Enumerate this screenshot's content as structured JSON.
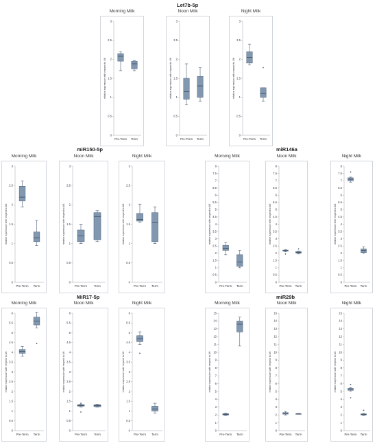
{
  "chart_data": [
    {
      "type": "box",
      "group": "Let7b-5p",
      "title": "Morning Milk",
      "ylabel": "relative expression with respect to U6",
      "categories": [
        "Pre-Term",
        "Term"
      ],
      "ylim": [
        0,
        3
      ],
      "yticks": [
        0,
        0.5,
        1,
        1.5,
        2,
        2.5,
        3
      ],
      "boxes": [
        {
          "min": 1.7,
          "q1": 1.95,
          "median": 2.08,
          "q3": 2.15,
          "max": 2.2,
          "outliers": []
        },
        {
          "min": 1.7,
          "q1": 1.75,
          "median": 1.88,
          "q3": 1.95,
          "max": 1.97,
          "outliers": []
        }
      ]
    },
    {
      "type": "box",
      "group": "Let7b-5p",
      "title": "Noon Milk",
      "ylabel": "relative expression with respect to U6",
      "categories": [
        "Pre-Term",
        "Term"
      ],
      "ylim": [
        0,
        3
      ],
      "yticks": [
        0,
        0.5,
        1,
        1.5,
        2,
        2.5,
        3
      ],
      "boxes": [
        {
          "min": 0.8,
          "q1": 0.95,
          "median": 1.15,
          "q3": 1.5,
          "max": 1.88,
          "outliers": []
        },
        {
          "min": 0.9,
          "q1": 1.0,
          "median": 1.3,
          "q3": 1.55,
          "max": 1.78,
          "outliers": []
        }
      ]
    },
    {
      "type": "box",
      "group": "Let7b-5p",
      "title": "Night Milk",
      "ylabel": "relative expression with respect to U6",
      "categories": [
        "Pre-Term",
        "Term"
      ],
      "ylim": [
        0,
        3
      ],
      "yticks": [
        0,
        0.5,
        1,
        1.5,
        2,
        2.5,
        3
      ],
      "boxes": [
        {
          "min": 1.85,
          "q1": 1.9,
          "median": 2.05,
          "q3": 2.2,
          "max": 2.4,
          "outliers": []
        },
        {
          "min": 0.9,
          "q1": 1.0,
          "median": 1.1,
          "q3": 1.25,
          "max": 1.25,
          "outliers": [
            1.78
          ]
        }
      ]
    },
    {
      "type": "box",
      "group": "miR150-5p",
      "title": "Morning Milk",
      "ylabel": "relative expression with respect to U6",
      "categories": [
        "Pre-Term",
        "Term"
      ],
      "ylim": [
        0,
        3
      ],
      "yticks": [
        0,
        0.5,
        1,
        1.5,
        2,
        2.5,
        3
      ],
      "boxes": [
        {
          "min": 1.95,
          "q1": 2.1,
          "median": 2.2,
          "q3": 2.48,
          "max": 2.62,
          "outliers": []
        },
        {
          "min": 0.95,
          "q1": 1.05,
          "median": 1.15,
          "q3": 1.3,
          "max": 1.6,
          "outliers": []
        }
      ]
    },
    {
      "type": "box",
      "group": "miR150-5p",
      "title": "Noon Milk",
      "ylabel": "relative expression with respect to U6",
      "categories": [
        "Pre-Term",
        "Term"
      ],
      "ylim": [
        0,
        3
      ],
      "yticks": [
        0,
        0.5,
        1,
        1.5,
        2,
        2.5,
        3
      ],
      "boxes": [
        {
          "min": 1.0,
          "q1": 1.05,
          "median": 1.2,
          "q3": 1.35,
          "max": 1.5,
          "outliers": []
        },
        {
          "min": 1.05,
          "q1": 1.1,
          "median": 1.7,
          "q3": 1.8,
          "max": 1.85,
          "outliers": []
        }
      ]
    },
    {
      "type": "box",
      "group": "miR150-5p",
      "title": "Night Milk",
      "ylabel": "relative expression with respect to U6",
      "categories": [
        "Pre-Term",
        "Term"
      ],
      "ylim": [
        0,
        3
      ],
      "yticks": [
        0,
        0.5,
        1,
        1.5,
        2,
        2.5,
        3
      ],
      "boxes": [
        {
          "min": 1.55,
          "q1": 1.58,
          "median": 1.62,
          "q3": 1.78,
          "max": 2.02,
          "outliers": []
        },
        {
          "min": 1.0,
          "q1": 1.05,
          "median": 1.55,
          "q3": 1.8,
          "max": 1.95,
          "outliers": []
        }
      ]
    },
    {
      "type": "box",
      "group": "miR146a",
      "title": "Morning Milk",
      "ylabel": "relative expression with respect to U6",
      "categories": [
        "Pre-Term",
        "Term"
      ],
      "ylim": [
        0,
        8
      ],
      "yticks": [
        0,
        0.5,
        1,
        1.5,
        2,
        2.5,
        3,
        3.5,
        4,
        4.5,
        5,
        5.5,
        6,
        6.5,
        7,
        7.5,
        8
      ],
      "boxes": [
        {
          "min": 1.9,
          "q1": 2.2,
          "median": 2.35,
          "q3": 2.55,
          "max": 2.75,
          "outliers": []
        },
        {
          "min": 1.0,
          "q1": 1.1,
          "median": 1.4,
          "q3": 1.9,
          "max": 2.2,
          "outliers": []
        }
      ]
    },
    {
      "type": "box",
      "group": "miR146a",
      "title": "Noon Milk",
      "ylabel": "relative expression with respect to U6",
      "categories": [
        "Pre-Term",
        "Term"
      ],
      "ylim": [
        0,
        8
      ],
      "yticks": [
        0,
        0.5,
        1,
        1.5,
        2,
        2.5,
        3,
        3.5,
        4,
        4.5,
        5,
        5.5,
        6,
        6.5,
        7,
        7.5,
        8
      ],
      "boxes": [
        {
          "min": 2.1,
          "q1": 2.15,
          "median": 2.18,
          "q3": 2.22,
          "max": 2.25,
          "outliers": [
            1.95
          ]
        },
        {
          "min": 1.95,
          "q1": 2.0,
          "median": 2.05,
          "q3": 2.12,
          "max": 2.15,
          "outliers": [
            2.3
          ]
        }
      ]
    },
    {
      "type": "box",
      "group": "miR146a",
      "title": "Night Milk",
      "ylabel": "relative expression with respect to U6",
      "categories": [
        "Pre-Term",
        "Term"
      ],
      "ylim": [
        0,
        8
      ],
      "yticks": [
        0,
        0.5,
        1,
        1.5,
        2,
        2.5,
        3,
        3.5,
        4,
        4.5,
        5,
        5.5,
        6,
        6.5,
        7,
        7.5,
        8
      ],
      "boxes": [
        {
          "min": 6.9,
          "q1": 7.0,
          "median": 7.1,
          "q3": 7.2,
          "max": 7.25,
          "outliers": [
            7.6
          ]
        },
        {
          "min": 2.0,
          "q1": 2.05,
          "median": 2.2,
          "q3": 2.3,
          "max": 2.45,
          "outliers": []
        }
      ]
    },
    {
      "type": "box",
      "group": "MiR17-5p",
      "title": "Morning Milk",
      "ylabel": "relative expression with respect to U6",
      "categories": [
        "Pre-Term",
        "Term"
      ],
      "ylim": [
        0,
        6
      ],
      "yticks": [
        0,
        0.5,
        1,
        1.5,
        2,
        2.5,
        3,
        3.5,
        4,
        4.5,
        5,
        5.5,
        6
      ],
      "boxes": [
        {
          "min": 3.8,
          "q1": 3.95,
          "median": 4.05,
          "q3": 4.15,
          "max": 4.3,
          "outliers": []
        },
        {
          "min": 5.25,
          "q1": 5.4,
          "median": 5.6,
          "q3": 5.8,
          "max": 6.05,
          "outliers": [
            4.45
          ]
        }
      ]
    },
    {
      "type": "box",
      "group": "MiR17-5p",
      "title": "Noon Milk",
      "ylabel": "relative expression with respect to U6",
      "categories": [
        "Pre-Term",
        "Term"
      ],
      "ylim": [
        0,
        6
      ],
      "yticks": [
        0,
        0.5,
        1,
        1.5,
        2,
        2.5,
        3,
        3.5,
        4,
        4.5,
        5,
        5.5,
        6
      ],
      "boxes": [
        {
          "min": 1.2,
          "q1": 1.25,
          "median": 1.28,
          "q3": 1.33,
          "max": 1.35,
          "outliers": [
            1.4,
            0.95
          ]
        },
        {
          "min": 1.2,
          "q1": 1.22,
          "median": 1.28,
          "q3": 1.32,
          "max": 1.35,
          "outliers": []
        }
      ]
    },
    {
      "type": "box",
      "group": "MiR17-5p",
      "title": "Night Milk",
      "ylabel": "relative expression with respect to U6",
      "categories": [
        "Pre-Term",
        "Term"
      ],
      "ylim": [
        0,
        6
      ],
      "yticks": [
        0,
        0.5,
        1,
        1.5,
        2,
        2.5,
        3,
        3.5,
        4,
        4.5,
        5,
        5.5,
        6
      ],
      "boxes": [
        {
          "min": 4.4,
          "q1": 4.55,
          "median": 4.7,
          "q3": 4.85,
          "max": 5.05,
          "outliers": [
            3.95
          ]
        },
        {
          "min": 0.9,
          "q1": 1.0,
          "median": 1.1,
          "q3": 1.25,
          "max": 1.4,
          "outliers": []
        }
      ]
    },
    {
      "type": "box",
      "group": "miR29b",
      "title": "Morning Milk",
      "ylabel": "relative expression with respect to U6",
      "categories": [
        "Pre-Term",
        "Term"
      ],
      "ylim": [
        0,
        15
      ],
      "yticks": [
        0,
        1,
        2,
        3,
        4,
        5,
        6,
        7,
        8,
        9,
        10,
        11,
        12,
        13,
        14,
        15
      ],
      "boxes": [
        {
          "min": 1.95,
          "q1": 2.0,
          "median": 2.08,
          "q3": 2.18,
          "max": 2.25,
          "outliers": []
        },
        {
          "min": 10.8,
          "q1": 12.6,
          "median": 13.6,
          "q3": 14.0,
          "max": 14.5,
          "outliers": []
        }
      ]
    },
    {
      "type": "box",
      "group": "miR29b",
      "title": "Noon Milk",
      "ylabel": "relative expression with respect to U6",
      "categories": [
        "Pre-Term",
        "Term"
      ],
      "ylim": [
        0,
        15
      ],
      "yticks": [
        0,
        1,
        2,
        3,
        4,
        5,
        6,
        7,
        8,
        9,
        10,
        11,
        12,
        13,
        14,
        15
      ],
      "boxes": [
        {
          "min": 2.0,
          "q1": 2.1,
          "median": 2.2,
          "q3": 2.3,
          "max": 2.45,
          "outliers": []
        },
        {
          "min": 2.1,
          "q1": 2.12,
          "median": 2.15,
          "q3": 2.18,
          "max": 2.2,
          "outliers": []
        }
      ]
    },
    {
      "type": "box",
      "group": "miR29b",
      "title": "Night Milk",
      "ylabel": "relative expression with respect to U6",
      "categories": [
        "Pre-Term",
        "Term"
      ],
      "ylim": [
        0,
        15
      ],
      "yticks": [
        0,
        1,
        2,
        3,
        4,
        5,
        6,
        7,
        8,
        9,
        10,
        11,
        12,
        13,
        14,
        15
      ],
      "boxes": [
        {
          "min": 5.05,
          "q1": 5.15,
          "median": 5.3,
          "q3": 5.4,
          "max": 5.5,
          "outliers": [
            5.9,
            4.2
          ]
        },
        {
          "min": 1.95,
          "q1": 2.0,
          "median": 2.08,
          "q3": 2.15,
          "max": 2.2,
          "outliers": [
            2.6
          ]
        }
      ]
    }
  ],
  "group_titles": {
    "let7b": "Let7b-5p",
    "mir150": "miR150-5p",
    "mir146a": "miR146a",
    "mir17": "MiR17-5p",
    "mir29b": "miR29b"
  },
  "colors": {
    "box_fill": "#8298b1",
    "box_stroke": "#4a5d73",
    "median": "#2f3e50",
    "whisker": "#4a5d73",
    "frame": "#c6ccd4",
    "grid": "#e6e9ee",
    "text": "#333333"
  }
}
